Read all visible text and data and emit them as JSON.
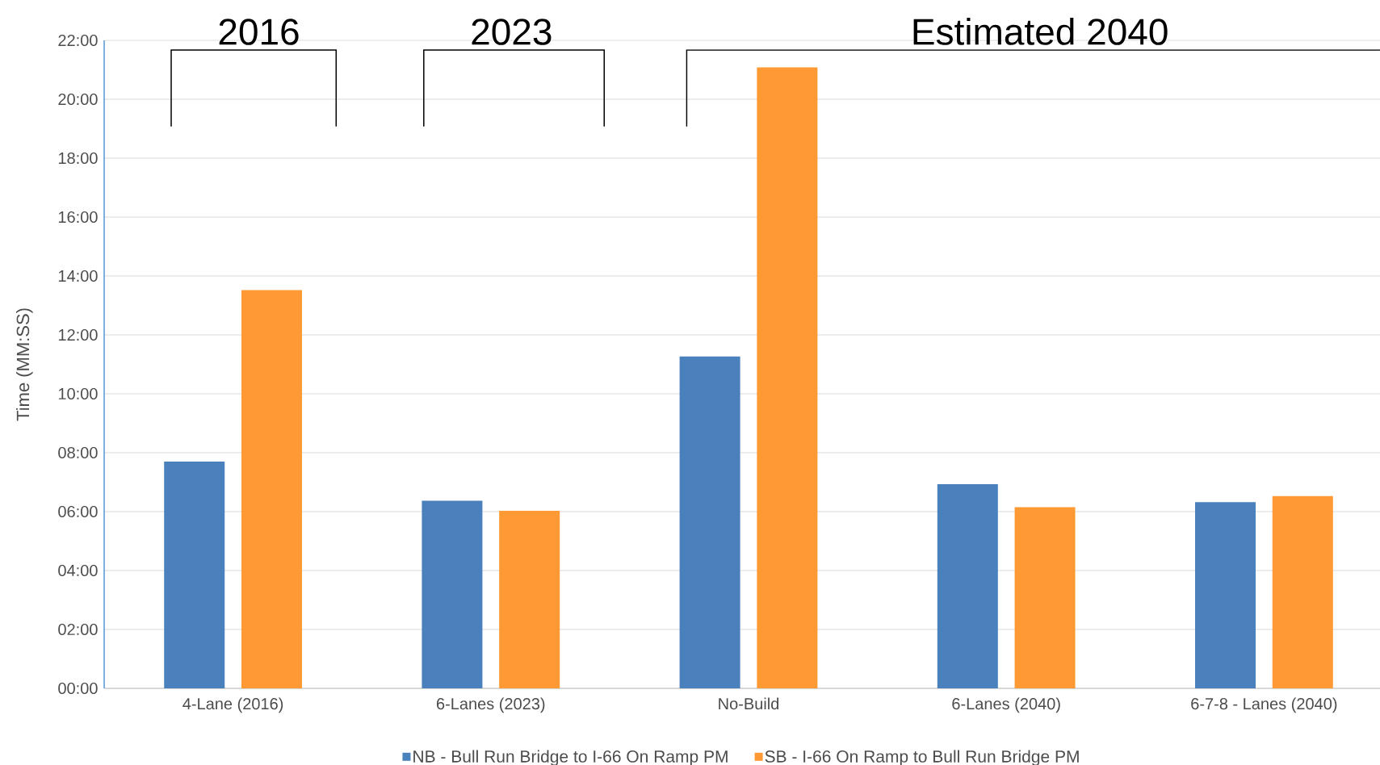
{
  "chart_data": {
    "type": "bar",
    "ylabel": "Time (MM:SS)",
    "categories": [
      "4-Lane (2016)",
      "6-Lanes (2023)",
      "No-Build",
      "6-Lanes (2040)",
      "6-7-8 - Lanes (2040)"
    ],
    "series": [
      {
        "name": "NB - Bull Run Bridge to I-66 On Ramp PM",
        "color": "#4a81bd",
        "values": [
          7.7,
          6.37,
          11.27,
          6.93,
          6.32
        ]
      },
      {
        "name": "SB - I-66 On Ramp to Bull Run Bridge PM",
        "color": "#ff9933",
        "values": [
          13.52,
          6.03,
          21.08,
          6.15,
          6.53
        ]
      }
    ],
    "ylim": [
      0,
      22
    ],
    "yticks": [
      {
        "value": 0,
        "label": "00:00"
      },
      {
        "value": 2,
        "label": "02:00"
      },
      {
        "value": 4,
        "label": "04:00"
      },
      {
        "value": 6,
        "label": "06:00"
      },
      {
        "value": 8,
        "label": "08:00"
      },
      {
        "value": 10,
        "label": "10:00"
      },
      {
        "value": 12,
        "label": "12:00"
      },
      {
        "value": 14,
        "label": "14:00"
      },
      {
        "value": 16,
        "label": "16:00"
      },
      {
        "value": 18,
        "label": "18:00"
      },
      {
        "value": 20,
        "label": "20:00"
      },
      {
        "value": 22,
        "label": "22:00"
      }
    ],
    "annotations": [
      "2016",
      "2023",
      "Estimated 2040"
    ],
    "grid": "y",
    "legend": "bottom"
  }
}
